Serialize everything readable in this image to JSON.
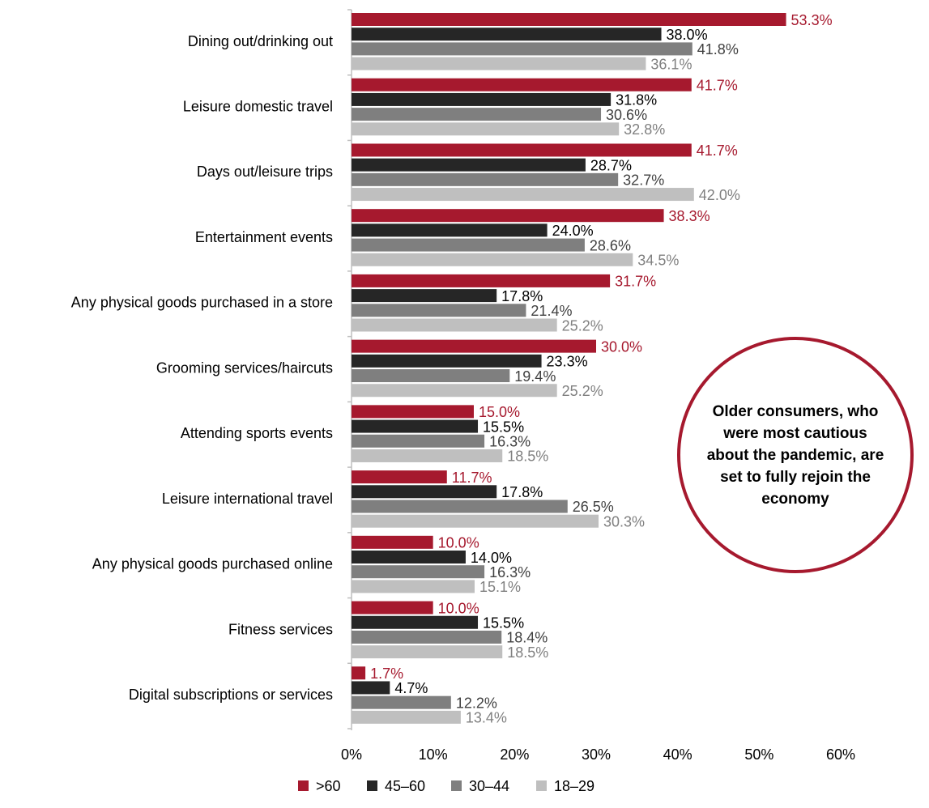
{
  "chart_data": {
    "type": "hbar",
    "categories": [
      "Dining out/drinking out",
      "Leisure domestic travel",
      "Days out/leisure trips",
      "Entertainment events",
      "Any physical goods purchased in a store",
      "Grooming services/haircuts",
      "Attending sports events",
      "Leisure international travel",
      "Any physical goods purchased online",
      "Fitness services",
      "Digital subscriptions or services"
    ],
    "series": [
      {
        "name": ">60",
        "color": "#a6192e",
        "values": [
          53.3,
          41.7,
          41.7,
          38.3,
          31.7,
          30.0,
          15.0,
          11.7,
          10.0,
          10.0,
          1.7
        ],
        "value_labels": [
          "53.3%",
          "41.7%",
          "41.7%",
          "38.3%",
          "31.7%",
          "30.0%",
          "15.0%",
          "11.7%",
          "10.0%",
          "10.0%",
          "1.7%"
        ]
      },
      {
        "name": "45–60",
        "color": "#262626",
        "values": [
          38.0,
          31.8,
          28.7,
          24.0,
          17.8,
          23.3,
          15.5,
          17.8,
          14.0,
          15.5,
          4.7
        ],
        "value_labels": [
          "38.0%",
          "31.8%",
          "28.7%",
          "24.0%",
          "17.8%",
          "23.3%",
          "15.5%",
          "17.8%",
          "14.0%",
          "15.5%",
          "4.7%"
        ]
      },
      {
        "name": "30–44",
        "color": "#7f7f7f",
        "values": [
          41.8,
          30.6,
          32.7,
          28.6,
          21.4,
          19.4,
          16.3,
          26.5,
          16.3,
          18.4,
          12.2
        ],
        "value_labels": [
          "41.8%",
          "30.6%",
          "32.7%",
          "28.6%",
          "21.4%",
          "19.4%",
          "16.3%",
          "26.5%",
          "16.3%",
          "18.4%",
          "12.2%"
        ]
      },
      {
        "name": "18–29",
        "color": "#bfbfbf",
        "values": [
          36.1,
          32.8,
          42.0,
          34.5,
          25.2,
          25.2,
          18.5,
          30.3,
          15.1,
          18.5,
          13.4
        ],
        "value_labels": [
          "36.1%",
          "32.8%",
          "42.0%",
          "34.5%",
          "25.2%",
          "25.2%",
          "18.5%",
          "30.3%",
          "15.1%",
          "18.5%",
          "13.4%"
        ]
      }
    ],
    "xlim": [
      0,
      60
    ],
    "xticks": [
      {
        "value": 0,
        "label": "0%"
      },
      {
        "value": 10,
        "label": "10%"
      },
      {
        "value": 20,
        "label": "20%"
      },
      {
        "value": 30,
        "label": "30%"
      },
      {
        "value": 40,
        "label": "40%"
      },
      {
        "value": 50,
        "label": "50%"
      },
      {
        "value": 60,
        "label": "60%"
      }
    ],
    "grid": false,
    "legend": "bottom",
    "annotation": "Older consumers, who were most cautious about the pandemic, are set to fully rejoin the economy"
  }
}
